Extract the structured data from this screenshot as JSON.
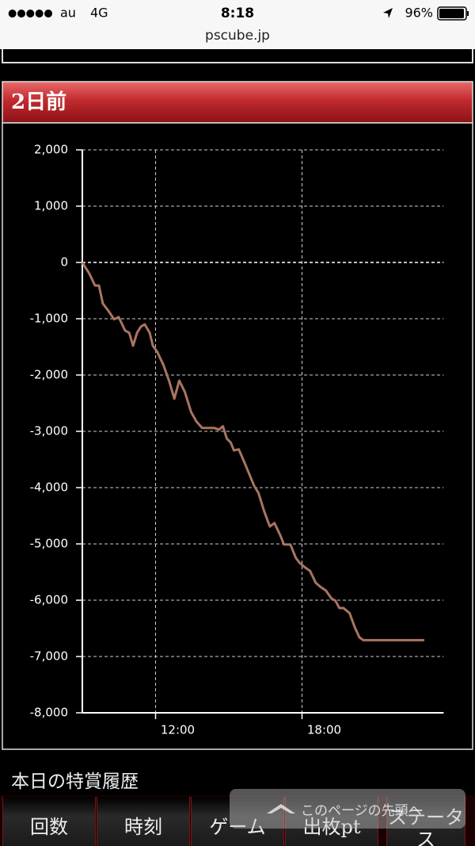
{
  "status_bar": {
    "signal": "●●●●●",
    "carrier": "au",
    "network": "4G",
    "time": "8:18",
    "battery": "96%"
  },
  "url": "pscube.jp",
  "section": {
    "title": "2日前"
  },
  "chart_data": {
    "type": "line",
    "color": "#a87561",
    "x": [
      9.0,
      9.29,
      9.52,
      9.68,
      9.84,
      10.07,
      10.3,
      10.49,
      10.75,
      10.92,
      11.08,
      11.24,
      11.4,
      11.56,
      11.76,
      11.89,
      12.06,
      12.32,
      12.55,
      12.77,
      12.97,
      13.2,
      13.46,
      13.68,
      13.91,
      14.17,
      14.4,
      14.6,
      14.76,
      14.92,
      15.08,
      15.21,
      15.41,
      15.57,
      15.8,
      16.03,
      16.22,
      16.45,
      16.68,
      16.87,
      17.1,
      17.26,
      17.52,
      17.75,
      17.91,
      18.1,
      18.33,
      18.56,
      18.75,
      18.98,
      19.21,
      19.37,
      19.53,
      19.7,
      19.95,
      20.15,
      20.35,
      20.51,
      23.01
    ],
    "values": [
      0,
      -200,
      -410,
      -410,
      -730,
      -860,
      -1010,
      -970,
      -1210,
      -1250,
      -1480,
      -1250,
      -1140,
      -1100,
      -1250,
      -1480,
      -1580,
      -1820,
      -2100,
      -2420,
      -2100,
      -2300,
      -2660,
      -2830,
      -2940,
      -2940,
      -2940,
      -2970,
      -2910,
      -3130,
      -3200,
      -3340,
      -3320,
      -3480,
      -3720,
      -3960,
      -4100,
      -4420,
      -4690,
      -4630,
      -4840,
      -5010,
      -5010,
      -5250,
      -5340,
      -5410,
      -5480,
      -5690,
      -5760,
      -5830,
      -5970,
      -6010,
      -6140,
      -6140,
      -6230,
      -6470,
      -6660,
      -6710,
      -6710
    ],
    "xlim": [
      9,
      23.8
    ],
    "xticks": [
      {
        "value": 12,
        "label": "12:00"
      },
      {
        "value": 18,
        "label": "18:00"
      }
    ],
    "ylim": [
      -8000,
      2000
    ],
    "yticks": [
      {
        "value": 2000,
        "label": "2,000"
      },
      {
        "value": 1000,
        "label": "1,000"
      },
      0,
      {
        "value": -1000,
        "label": "-1,000"
      },
      {
        "value": -2000,
        "label": "-2,000"
      },
      {
        "value": -3000,
        "label": "-3,000"
      },
      {
        "value": -4000,
        "label": "-4,000"
      },
      {
        "value": -5000,
        "label": "-5,000"
      },
      {
        "value": -6000,
        "label": "-6,000"
      },
      {
        "value": -7000,
        "label": "-7,000"
      },
      {
        "value": -8000,
        "label": "-8,000"
      }
    ],
    "grid": true
  },
  "history": {
    "title": "本日の特賞履歴",
    "columns": [
      "回数",
      "時刻",
      "ゲーム",
      "出枚pt",
      "ステータス"
    ]
  },
  "scroll_top_button": {
    "label": "このページの先頭へ"
  }
}
